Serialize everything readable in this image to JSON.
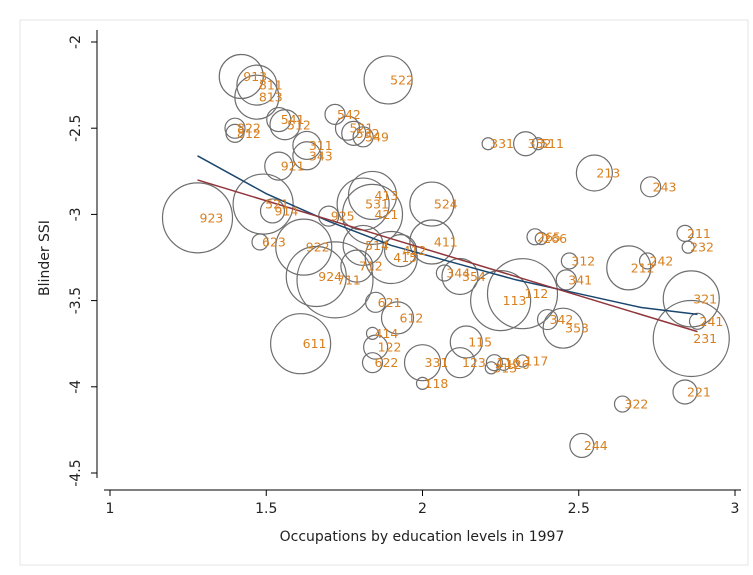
{
  "chart_data": {
    "type": "scatter",
    "xlabel": "Occupations by education levels in 1997",
    "ylabel": "Blinder SSI",
    "xlim": [
      1,
      3
    ],
    "ylim": [
      -4.5,
      -2
    ],
    "xticks": [
      1,
      1.5,
      2,
      2.5,
      3
    ],
    "yticks": [
      -2,
      -2.5,
      -3,
      -3.5,
      -4,
      -4.5
    ],
    "marker_color": "#6e6e6e",
    "label_color": "#d8801f",
    "points": {
      "labels": [
        "913",
        "811",
        "813",
        "522",
        "541",
        "542",
        "512",
        "521",
        "822",
        "812",
        "532",
        "549",
        "311",
        "343",
        "331",
        "352",
        "511",
        "921",
        "213",
        "243",
        "413",
        "531",
        "524",
        "521",
        "914",
        "925",
        "421",
        "923",
        "411",
        "623",
        "922",
        "514",
        "412",
        "265",
        "266",
        "211",
        "232",
        "242",
        "212",
        "312",
        "924",
        "415",
        "712",
        "711",
        "344",
        "354",
        "341",
        "112",
        "113",
        "321",
        "621",
        "241",
        "612",
        "342",
        "353",
        "231",
        "414",
        "611",
        "115",
        "122",
        "331",
        "123",
        "117",
        "116",
        "126",
        "622",
        "313",
        "118",
        "221",
        "322",
        "244"
      ],
      "x": [
        1.42,
        1.47,
        1.47,
        1.89,
        1.54,
        1.72,
        1.56,
        1.76,
        1.4,
        1.4,
        1.78,
        1.81,
        1.63,
        1.63,
        2.21,
        2.33,
        2.37,
        1.54,
        2.55,
        2.73,
        1.84,
        1.81,
        2.03,
        1.49,
        1.52,
        1.7,
        1.84,
        1.28,
        2.03,
        1.48,
        1.62,
        1.81,
        1.93,
        2.36,
        2.38,
        2.84,
        2.85,
        2.72,
        2.66,
        2.47,
        1.66,
        1.9,
        1.79,
        1.72,
        2.07,
        2.12,
        2.46,
        2.32,
        2.25,
        2.86,
        1.85,
        2.88,
        1.92,
        2.4,
        2.45,
        2.86,
        1.84,
        1.61,
        2.14,
        1.85,
        2.0,
        2.12,
        2.32,
        2.23,
        2.26,
        1.84,
        2.22,
        2.0,
        2.84,
        2.64,
        2.51
      ],
      "y": [
        -2.2,
        -2.25,
        -2.32,
        -2.22,
        -2.45,
        -2.42,
        -2.48,
        -2.5,
        -2.5,
        -2.53,
        -2.53,
        -2.55,
        -2.6,
        -2.66,
        -2.59,
        -2.59,
        -2.59,
        -2.72,
        -2.76,
        -2.84,
        -2.89,
        -2.94,
        -2.94,
        -2.94,
        -2.98,
        -3.01,
        -3.0,
        -3.02,
        -3.16,
        -3.16,
        -3.19,
        -3.18,
        -3.21,
        -3.13,
        -3.14,
        -3.11,
        -3.19,
        -3.27,
        -3.31,
        -3.27,
        -3.36,
        -3.25,
        -3.3,
        -3.38,
        -3.34,
        -3.36,
        -3.38,
        -3.46,
        -3.5,
        -3.49,
        -3.51,
        -3.62,
        -3.6,
        -3.61,
        -3.66,
        -3.72,
        -3.69,
        -3.75,
        -3.74,
        -3.77,
        -3.86,
        -3.86,
        -3.85,
        -3.86,
        -3.87,
        -3.86,
        -3.89,
        -3.98,
        -4.03,
        -4.1,
        -4.34
      ],
      "sizes": [
        22,
        20,
        22,
        24,
        12,
        10,
        15,
        12,
        10,
        9,
        12,
        10,
        14,
        14,
        6,
        12,
        6,
        14,
        18,
        10,
        24,
        26,
        22,
        30,
        12,
        10,
        30,
        35,
        22,
        8,
        28,
        20,
        16,
        8,
        6,
        8,
        6,
        8,
        22,
        8,
        30,
        26,
        16,
        38,
        8,
        18,
        10,
        35,
        30,
        28,
        10,
        8,
        16,
        10,
        20,
        38,
        6,
        30,
        16,
        12,
        18,
        15,
        6,
        8,
        6,
        10,
        6,
        6,
        12,
        8,
        12
      ]
    },
    "fit_lines": [
      {
        "color": "#1a476f",
        "x": [
          1.28,
          1.5,
          1.7,
          1.9,
          2.1,
          2.3,
          2.5,
          2.7,
          2.88
        ],
        "y": [
          -2.66,
          -2.88,
          -3.04,
          -3.18,
          -3.28,
          -3.38,
          -3.46,
          -3.54,
          -3.58
        ]
      },
      {
        "color": "#90353b",
        "x": [
          1.28,
          2.88
        ],
        "y": [
          -2.8,
          -3.68
        ]
      }
    ]
  }
}
